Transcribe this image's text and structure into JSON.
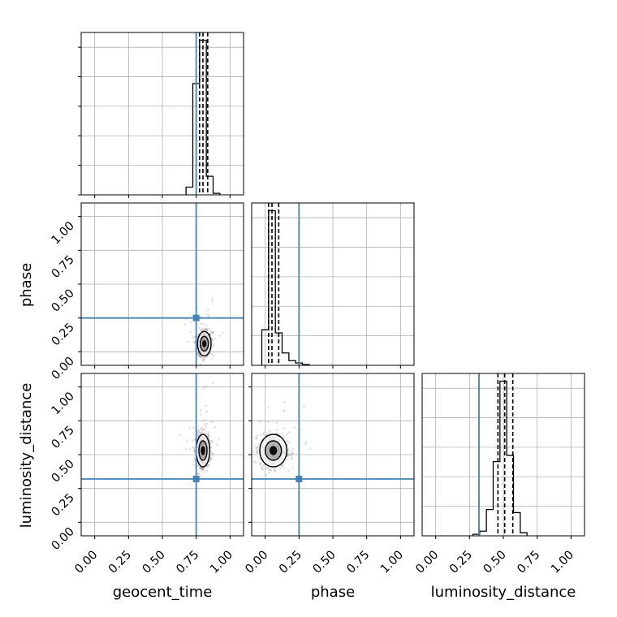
{
  "chart_data": {
    "type": "corner",
    "parameters": [
      "geocent_time",
      "phase",
      "luminosity_distance"
    ],
    "labels": {
      "geocent_time": "geocent_time",
      "phase": "phase",
      "luminosity_distance": "luminosity_distance"
    },
    "axis_range": [
      -0.1,
      1.1
    ],
    "tick_labels": [
      "0.00",
      "0.25",
      "0.50",
      "0.75",
      "1.00"
    ],
    "tick_values": [
      0.0,
      0.25,
      0.5,
      0.75,
      1.0
    ],
    "grid": true,
    "truth_color": "#4682b4",
    "truths": {
      "geocent_time": 0.75,
      "phase": 0.25,
      "luminosity_distance": 0.32
    },
    "quantiles": {
      "geocent_time": [
        0.775,
        0.8,
        0.835
      ],
      "phase": [
        0.025,
        0.05,
        0.1
      ],
      "luminosity_distance": [
        0.46,
        0.51,
        0.57
      ]
    },
    "histograms": {
      "geocent_time": {
        "bin_edges": [
          0.675,
          0.725,
          0.775,
          0.825,
          0.875,
          0.925
        ],
        "counts": [
          0.05,
          0.72,
          1.0,
          0.12,
          0.01
        ]
      },
      "phase": {
        "bin_edges": [
          -0.025,
          0.025,
          0.075,
          0.125,
          0.175,
          0.225,
          0.275,
          0.325
        ],
        "counts": [
          0.23,
          1.0,
          0.21,
          0.08,
          0.03,
          0.015,
          0.005
        ]
      },
      "luminosity_distance": {
        "bin_edges": [
          0.275,
          0.325,
          0.375,
          0.425,
          0.475,
          0.525,
          0.575,
          0.625,
          0.675
        ],
        "counts": [
          0.01,
          0.03,
          0.17,
          0.48,
          1.0,
          0.52,
          0.15,
          0.02
        ]
      }
    },
    "scatter_2d": [
      {
        "x_param": "geocent_time",
        "y_param": "phase",
        "center": [
          0.81,
          0.06
        ],
        "spread": [
          0.025,
          0.045
        ]
      },
      {
        "x_param": "geocent_time",
        "y_param": "luminosity_distance",
        "center": [
          0.8,
          0.53
        ],
        "spread": [
          0.025,
          0.06
        ]
      },
      {
        "x_param": "phase",
        "y_param": "luminosity_distance",
        "center": [
          0.06,
          0.53
        ],
        "spread": [
          0.05,
          0.06
        ]
      }
    ]
  }
}
